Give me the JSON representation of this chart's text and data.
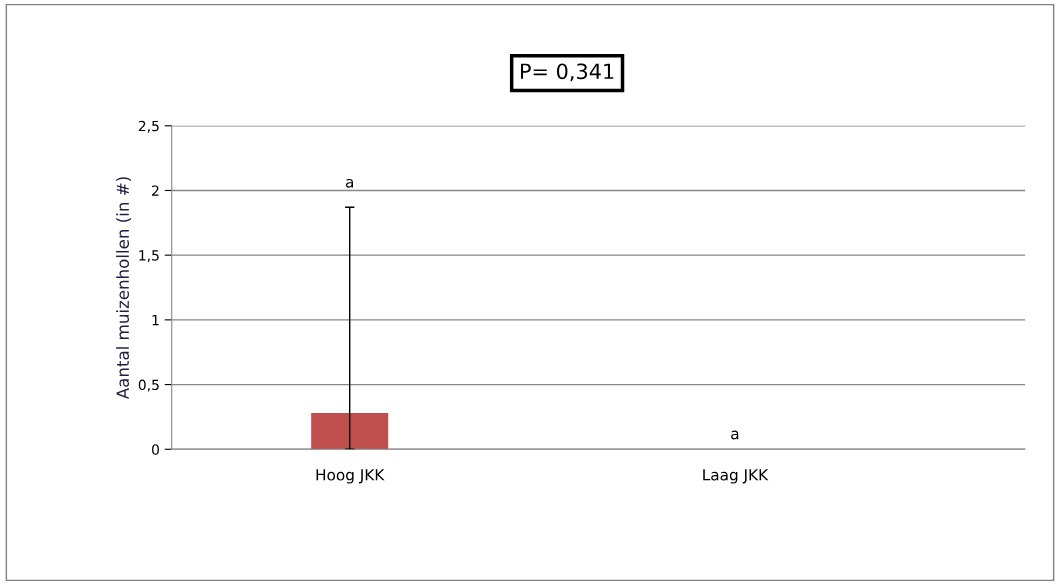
{
  "chart_data": {
    "type": "bar",
    "ylabel": "Aantal muizenhollen (in #)",
    "categories": [
      "Hoog JKK",
      "Laag JKK"
    ],
    "values": [
      0.28,
      0
    ],
    "color": "#c0504d",
    "errors": [
      [
        0,
        1.87
      ],
      null
    ],
    "ylim": [
      0,
      2.5
    ],
    "yticks": [
      {
        "value": 0,
        "label": "0"
      },
      {
        "value": 0.5,
        "label": "0,5"
      },
      {
        "value": 1,
        "label": "1"
      },
      {
        "value": 1.5,
        "label": "1,5"
      },
      {
        "value": 2,
        "label": "2"
      },
      {
        "value": 2.5,
        "label": "2,5"
      }
    ],
    "grid": "y",
    "legend": false,
    "annotations": [
      "P= 0,341",
      "a",
      "a"
    ]
  }
}
